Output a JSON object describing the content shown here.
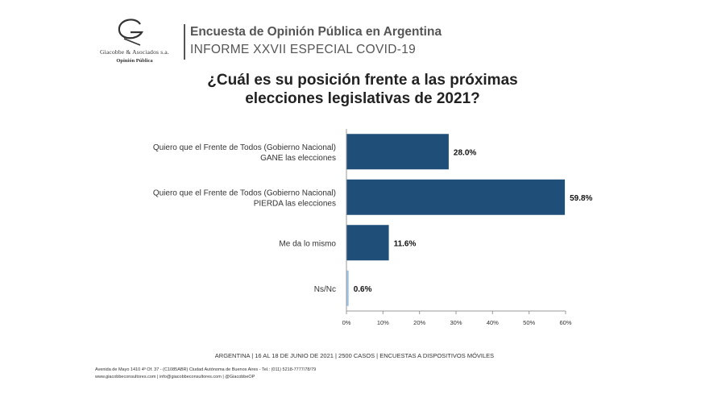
{
  "header": {
    "logo_name": "Giacobbe & Asociados s.a.",
    "logo_sub": "Opinión Pública",
    "title": "Encuesta de Opinión Pública en Argentina",
    "subtitle": "INFORME XXVII ESPECIAL COVID-19"
  },
  "question": {
    "line1": "¿Cuál es su posición frente a las próximas",
    "line2": "elecciones legislativas de 2021?"
  },
  "chart_data": {
    "type": "bar",
    "orientation": "horizontal",
    "title": "¿Cuál es su posición frente a las próximas elecciones legislativas de 2021?",
    "categories": [
      [
        "Quiero que el Frente de Todos (Gobierno Nacional)",
        "GANE las elecciones"
      ],
      [
        "Quiero que el Frente de Todos (Gobierno Nacional)",
        "PIERDA las elecciones"
      ],
      [
        "Me da lo mismo"
      ],
      [
        "Ns/Nc"
      ]
    ],
    "values": [
      28.0,
      59.8,
      11.6,
      0.6
    ],
    "value_labels": [
      "28.0%",
      "59.8%",
      "11.6%",
      "0.6%"
    ],
    "xlim": [
      0,
      60
    ],
    "xticks": [
      "0%",
      "10%",
      "20%",
      "30%",
      "40%",
      "50%",
      "60%"
    ],
    "colors": [
      "#1f4e79",
      "#1f4e79",
      "#1f4e79",
      "#9dc3e6"
    ],
    "grid": false
  },
  "footer": {
    "line1": "ARGENTINA | 16 AL 18 DE JUNIO DE 2021 | 2500 CASOS | ENCUESTAS A DISPOSITIVOS MÓVILES",
    "line2": "Avenida de Mayo 1410 4º Of. 37 - (C1085ABR) Ciudad Autónoma de Buenos Aires - Tel.: (011) 5218-7777/78/79",
    "line3": "www.giacobbeconsultores.com | info@giacobbeconsultores.com | @GiacobbeOP"
  }
}
